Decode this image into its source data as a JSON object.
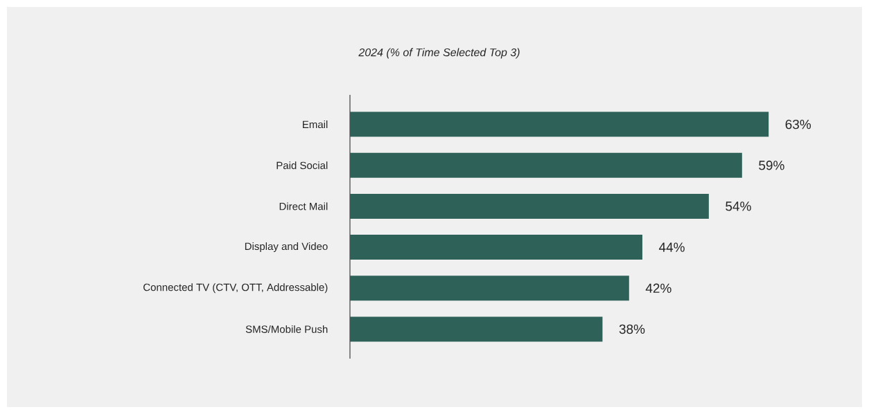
{
  "chart_data": {
    "type": "bar",
    "orientation": "horizontal",
    "title": "2024 (% of Time Selected Top 3)",
    "categories": [
      "Email",
      "Paid Social",
      "Direct Mail",
      "Display and Video",
      "Connected TV (CTV, OTT, Addressable)",
      "SMS/Mobile Push"
    ],
    "values": [
      63,
      59,
      54,
      44,
      42,
      38
    ],
    "value_labels": [
      "63%",
      "59%",
      "54%",
      "44%",
      "42%",
      "38%"
    ],
    "color": "#2e6259"
  }
}
